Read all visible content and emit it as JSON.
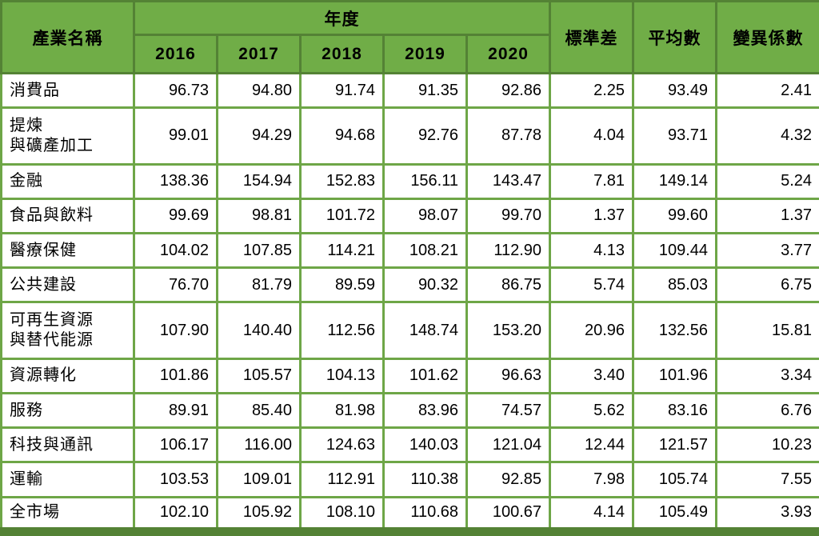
{
  "chart_data": {
    "type": "table",
    "header": {
      "industry": "產業名稱",
      "year_group": "年度",
      "years": [
        "2016",
        "2017",
        "2018",
        "2019",
        "2020"
      ],
      "std_dev": "標準差",
      "mean": "平均數",
      "cv": "變異係數"
    },
    "rows": [
      {
        "name": "消費品",
        "values": [
          "96.73",
          "94.80",
          "91.74",
          "91.35",
          "92.86",
          "2.25",
          "93.49",
          "2.41"
        ]
      },
      {
        "name": "提煉\n與礦產加工",
        "values": [
          "99.01",
          "94.29",
          "94.68",
          "92.76",
          "87.78",
          "4.04",
          "93.71",
          "4.32"
        ]
      },
      {
        "name": "金融",
        "values": [
          "138.36",
          "154.94",
          "152.83",
          "156.11",
          "143.47",
          "7.81",
          "149.14",
          "5.24"
        ]
      },
      {
        "name": "食品與飲料",
        "values": [
          "99.69",
          "98.81",
          "101.72",
          "98.07",
          "99.70",
          "1.37",
          "99.60",
          "1.37"
        ]
      },
      {
        "name": "醫療保健",
        "values": [
          "104.02",
          "107.85",
          "114.21",
          "108.21",
          "112.90",
          "4.13",
          "109.44",
          "3.77"
        ]
      },
      {
        "name": "公共建設",
        "values": [
          "76.70",
          "81.79",
          "89.59",
          "90.32",
          "86.75",
          "5.74",
          "85.03",
          "6.75"
        ]
      },
      {
        "name": "可再生資源\n與替代能源",
        "values": [
          "107.90",
          "140.40",
          "112.56",
          "148.74",
          "153.20",
          "20.96",
          "132.56",
          "15.81"
        ]
      },
      {
        "name": "資源轉化",
        "values": [
          "101.86",
          "105.57",
          "104.13",
          "101.62",
          "96.63",
          "3.40",
          "101.96",
          "3.34"
        ]
      },
      {
        "name": "服務",
        "values": [
          "89.91",
          "85.40",
          "81.98",
          "83.96",
          "74.57",
          "5.62",
          "83.16",
          "6.76"
        ]
      },
      {
        "name": "科技與通訊",
        "values": [
          "106.17",
          "116.00",
          "124.63",
          "140.03",
          "121.04",
          "12.44",
          "121.57",
          "10.23"
        ]
      },
      {
        "name": "運輸",
        "values": [
          "103.53",
          "109.01",
          "112.91",
          "110.38",
          "92.85",
          "7.98",
          "105.74",
          "7.55"
        ]
      },
      {
        "name": "全市場",
        "values": [
          "102.10",
          "105.92",
          "108.10",
          "110.68",
          "100.67",
          "4.14",
          "105.49",
          "3.93"
        ]
      }
    ]
  },
  "colors": {
    "header_fill": "#70AD47",
    "grid_line": "#6EA647",
    "dark_border": "#548235",
    "cell_bg": "#FFFFFF",
    "text": "#000000"
  }
}
